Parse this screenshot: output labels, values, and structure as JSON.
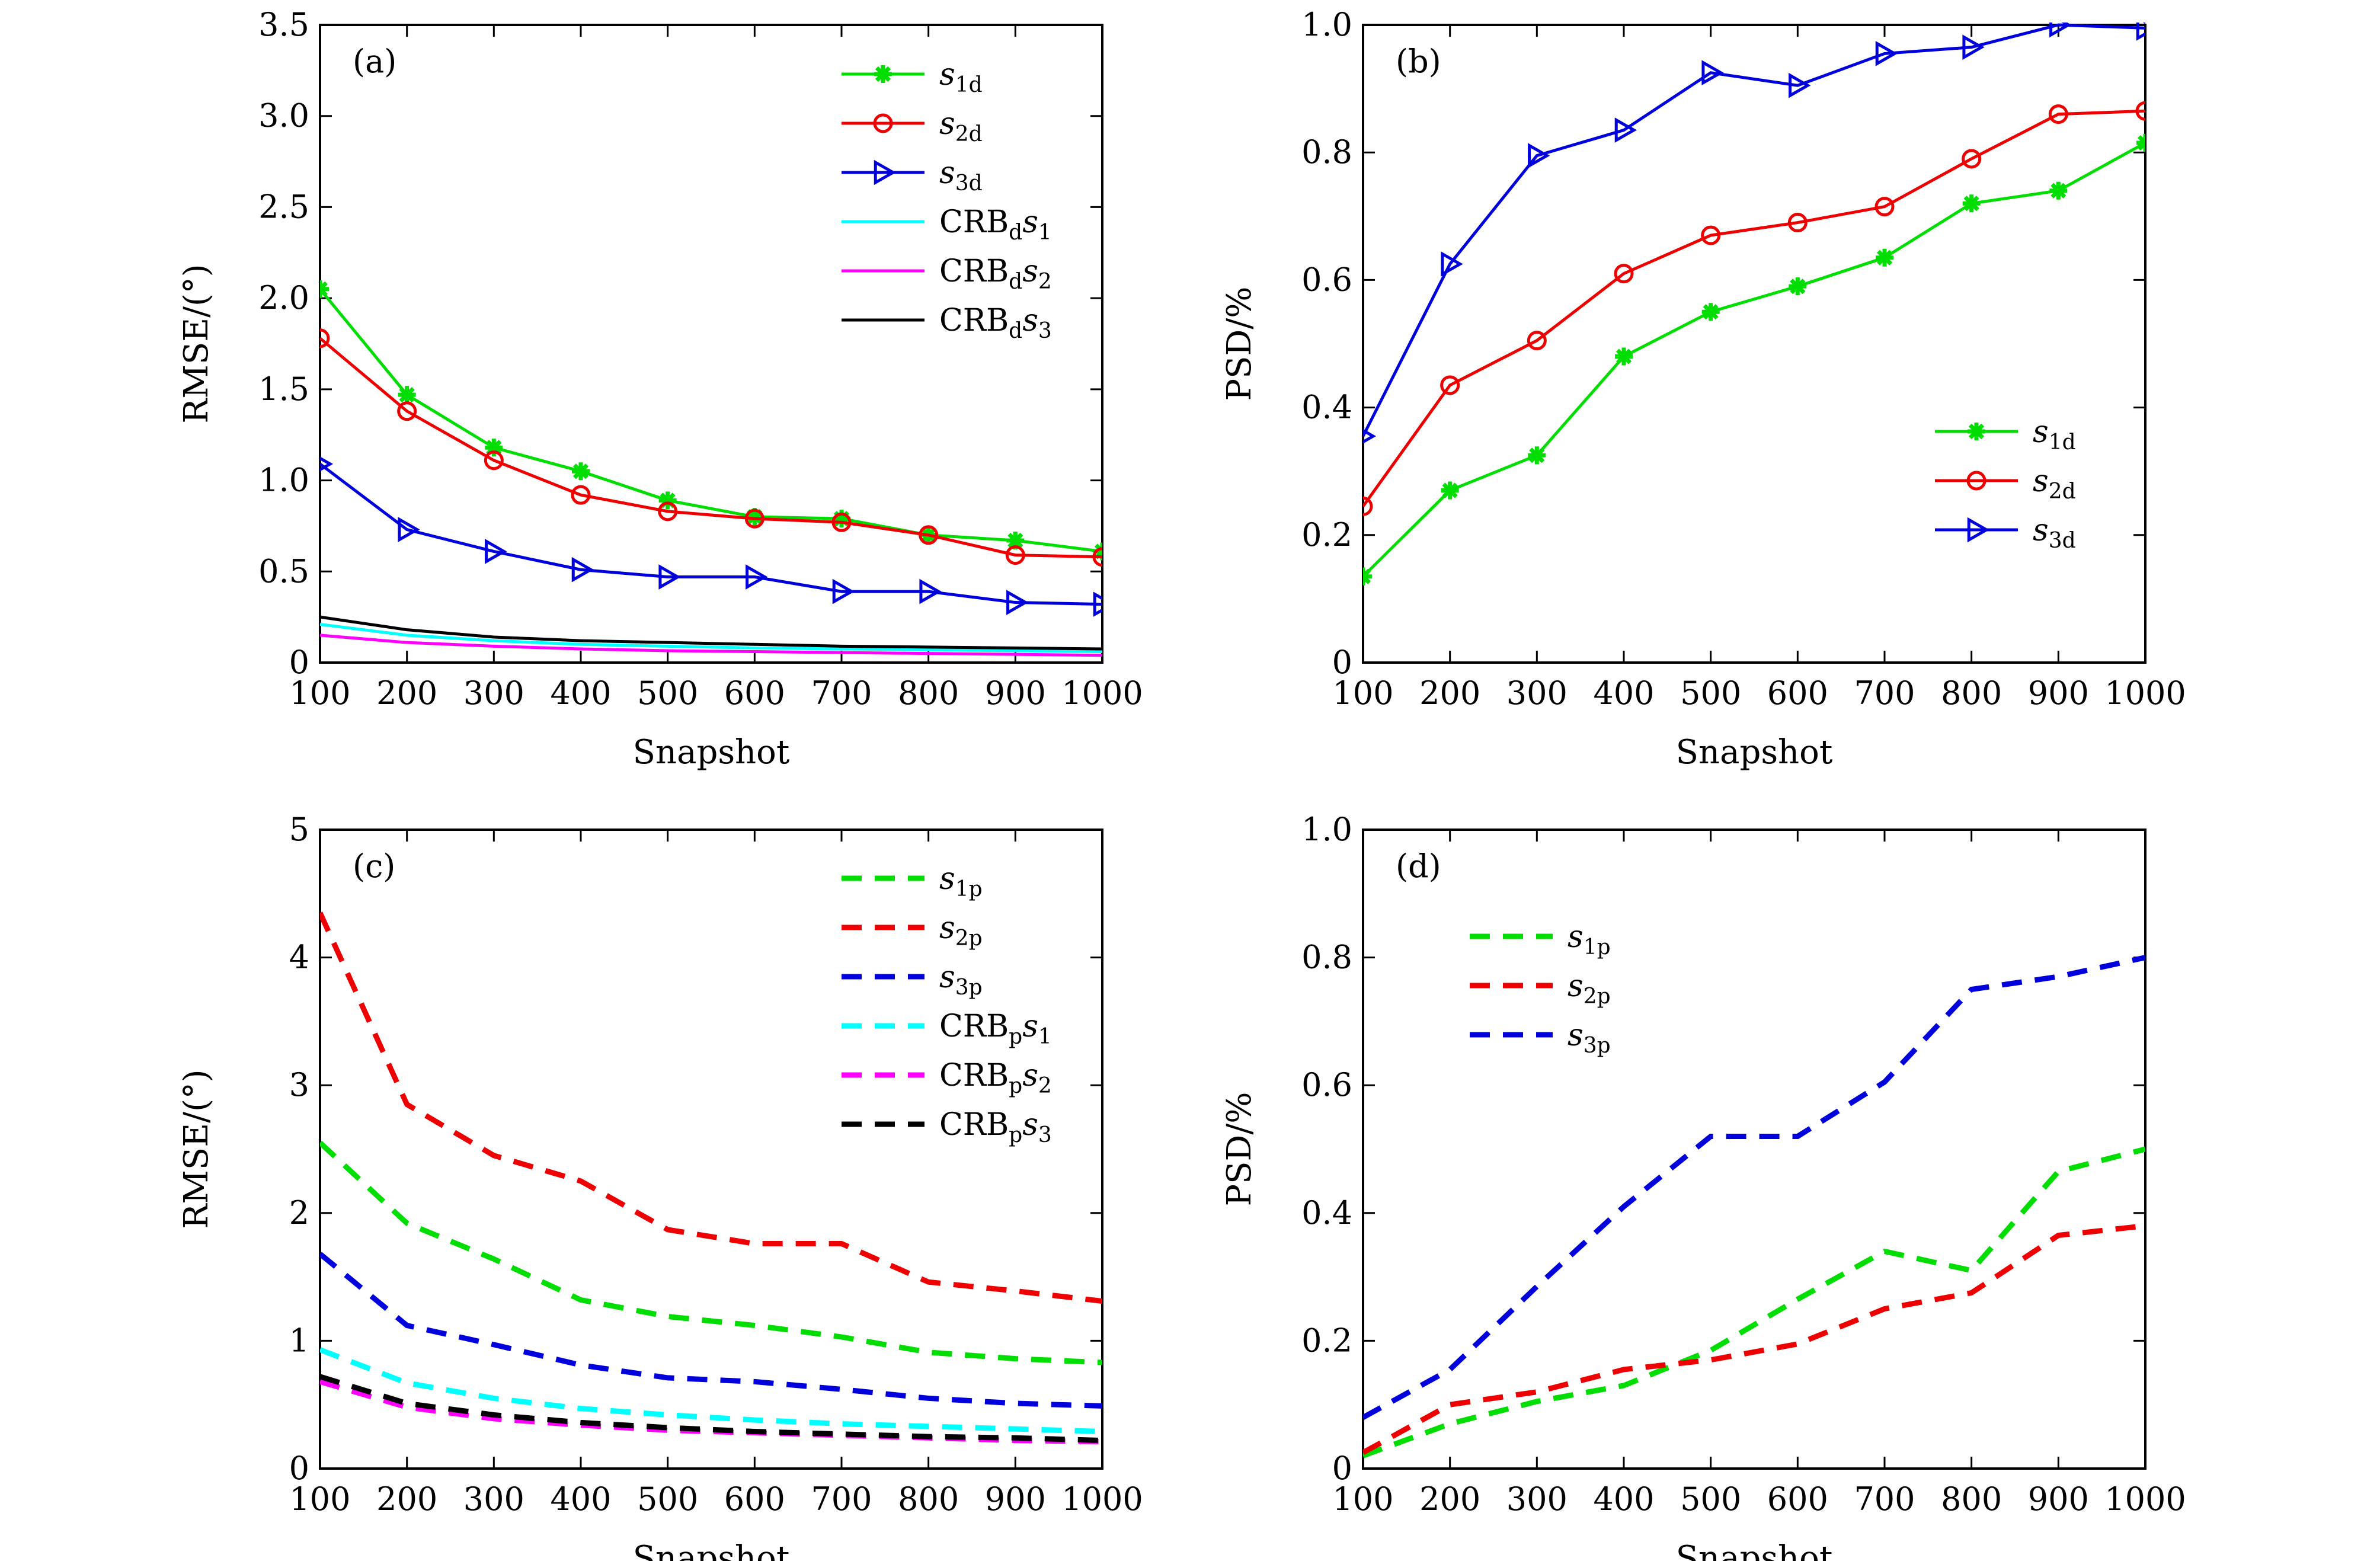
{
  "chart_data": [
    {
      "panel": "(a)",
      "type": "line",
      "xlabel": "Snapshot",
      "ylabel": "RMSE/(°)",
      "xlim": [
        100,
        1000
      ],
      "ylim": [
        0,
        3.5
      ],
      "xticks": [
        "100",
        "200",
        "300",
        "400",
        "500",
        "600",
        "700",
        "800",
        "900",
        "1000"
      ],
      "yticks": [
        "0",
        "0.5",
        "1.0",
        "1.5",
        "2.0",
        "2.5",
        "3.0",
        "3.5"
      ],
      "legend_position": "top-right",
      "x": [
        100,
        200,
        300,
        400,
        500,
        600,
        700,
        800,
        900,
        1000
      ],
      "series": [
        {
          "name": "s1d",
          "name_main": "s",
          "name_sub": "1d",
          "color": "#00dd00",
          "marker": "star",
          "style": "solid",
          "values": [
            2.05,
            1.47,
            1.18,
            1.05,
            0.89,
            0.8,
            0.79,
            0.7,
            0.67,
            0.61
          ]
        },
        {
          "name": "s2d",
          "name_main": "s",
          "name_sub": "2d",
          "color": "#ee0000",
          "marker": "circle",
          "style": "solid",
          "values": [
            1.78,
            1.38,
            1.11,
            0.92,
            0.83,
            0.79,
            0.77,
            0.7,
            0.59,
            0.58
          ]
        },
        {
          "name": "s3d",
          "name_main": "s",
          "name_sub": "3d",
          "color": "#0000dd",
          "marker": "triangle",
          "style": "solid",
          "values": [
            1.09,
            0.73,
            0.61,
            0.51,
            0.47,
            0.47,
            0.39,
            0.39,
            0.33,
            0.32
          ]
        },
        {
          "name": "CRBds1",
          "name_main": "CRB",
          "name_sub": "d",
          "name_suffix": "s",
          "name_suffix_sub": "1",
          "color": "#00ffff",
          "marker": "none",
          "style": "solid",
          "values": [
            0.21,
            0.15,
            0.12,
            0.1,
            0.09,
            0.08,
            0.075,
            0.07,
            0.065,
            0.06
          ]
        },
        {
          "name": "CRBds2",
          "name_main": "CRB",
          "name_sub": "d",
          "name_suffix": "s",
          "name_suffix_sub": "2",
          "color": "#ff00ff",
          "marker": "none",
          "style": "solid",
          "values": [
            0.15,
            0.11,
            0.09,
            0.075,
            0.065,
            0.06,
            0.055,
            0.05,
            0.045,
            0.04
          ]
        },
        {
          "name": "CRBds3",
          "name_main": "CRB",
          "name_sub": "d",
          "name_suffix": "s",
          "name_suffix_sub": "3",
          "color": "#000000",
          "marker": "none",
          "style": "solid",
          "values": [
            0.25,
            0.18,
            0.14,
            0.12,
            0.11,
            0.1,
            0.09,
            0.085,
            0.08,
            0.075
          ]
        }
      ]
    },
    {
      "panel": "(b)",
      "type": "line",
      "xlabel": "Snapshot",
      "ylabel": "PSD/%",
      "xlim": [
        100,
        1000
      ],
      "ylim": [
        0,
        1.0
      ],
      "xticks": [
        "100",
        "200",
        "300",
        "400",
        "500",
        "600",
        "700",
        "800",
        "900",
        "1000"
      ],
      "yticks": [
        "0",
        "0.2",
        "0.4",
        "0.6",
        "0.8",
        "1.0"
      ],
      "legend_position": "bottom-right",
      "x": [
        100,
        200,
        300,
        400,
        500,
        600,
        700,
        800,
        900,
        1000
      ],
      "series": [
        {
          "name": "s1d",
          "name_main": "s",
          "name_sub": "1d",
          "color": "#00dd00",
          "marker": "star",
          "style": "solid",
          "values": [
            0.135,
            0.27,
            0.325,
            0.48,
            0.55,
            0.59,
            0.635,
            0.72,
            0.74,
            0.815
          ]
        },
        {
          "name": "s2d",
          "name_main": "s",
          "name_sub": "2d",
          "color": "#ee0000",
          "marker": "circle",
          "style": "solid",
          "values": [
            0.245,
            0.435,
            0.505,
            0.61,
            0.67,
            0.69,
            0.715,
            0.79,
            0.86,
            0.865
          ]
        },
        {
          "name": "s3d",
          "name_main": "s",
          "name_sub": "3d",
          "color": "#0000dd",
          "marker": "triangle",
          "style": "solid",
          "values": [
            0.355,
            0.625,
            0.795,
            0.835,
            0.925,
            0.905,
            0.955,
            0.965,
            1.0,
            0.995
          ]
        }
      ]
    },
    {
      "panel": "(c)",
      "type": "line",
      "xlabel": "Snapshot",
      "ylabel": "RMSE/(°)",
      "xlim": [
        100,
        1000
      ],
      "ylim": [
        0,
        5
      ],
      "xticks": [
        "100",
        "200",
        "300",
        "400",
        "500",
        "600",
        "700",
        "800",
        "900",
        "1000"
      ],
      "yticks": [
        "0",
        "1",
        "2",
        "3",
        "4",
        "5"
      ],
      "legend_position": "top-right",
      "x": [
        100,
        200,
        300,
        400,
        500,
        600,
        700,
        800,
        900,
        1000
      ],
      "series": [
        {
          "name": "s1p",
          "name_main": "s",
          "name_sub": "1p",
          "color": "#00dd00",
          "marker": "none",
          "style": "dashed",
          "values": [
            2.55,
            1.92,
            1.64,
            1.32,
            1.19,
            1.12,
            1.03,
            0.91,
            0.86,
            0.83
          ]
        },
        {
          "name": "s2p",
          "name_main": "s",
          "name_sub": "2p",
          "color": "#ee0000",
          "marker": "none",
          "style": "dashed",
          "values": [
            4.35,
            2.85,
            2.45,
            2.25,
            1.87,
            1.76,
            1.76,
            1.46,
            1.39,
            1.31
          ]
        },
        {
          "name": "s3p",
          "name_main": "s",
          "name_sub": "3p",
          "color": "#0000dd",
          "marker": "none",
          "style": "dashed",
          "values": [
            1.68,
            1.12,
            0.97,
            0.81,
            0.71,
            0.68,
            0.62,
            0.55,
            0.51,
            0.49
          ]
        },
        {
          "name": "CRBps1",
          "name_main": "CRB",
          "name_sub": "p",
          "name_suffix": "s",
          "name_suffix_sub": "1",
          "color": "#00ffff",
          "marker": "none",
          "style": "dashed",
          "values": [
            0.93,
            0.67,
            0.55,
            0.47,
            0.42,
            0.38,
            0.35,
            0.33,
            0.31,
            0.29
          ]
        },
        {
          "name": "CRBps2",
          "name_main": "CRB",
          "name_sub": "p",
          "name_suffix": "s",
          "name_suffix_sub": "2",
          "color": "#ff00ff",
          "marker": "none",
          "style": "dashed",
          "values": [
            0.68,
            0.48,
            0.39,
            0.34,
            0.3,
            0.28,
            0.26,
            0.24,
            0.22,
            0.21
          ]
        },
        {
          "name": "CRBps3",
          "name_main": "CRB",
          "name_sub": "p",
          "name_suffix": "s",
          "name_suffix_sub": "3",
          "color": "#000000",
          "marker": "none",
          "style": "dashed",
          "values": [
            0.72,
            0.51,
            0.42,
            0.36,
            0.32,
            0.29,
            0.27,
            0.25,
            0.24,
            0.22
          ]
        }
      ]
    },
    {
      "panel": "(d)",
      "type": "line",
      "xlabel": "Snapshot",
      "ylabel": "PSD/%",
      "xlim": [
        100,
        1000
      ],
      "ylim": [
        0,
        1.0
      ],
      "xticks": [
        "100",
        "200",
        "300",
        "400",
        "500",
        "600",
        "700",
        "800",
        "900",
        "1000"
      ],
      "yticks": [
        "0",
        "0.2",
        "0.4",
        "0.6",
        "0.8",
        "1.0"
      ],
      "legend_position": "top-left",
      "x": [
        100,
        200,
        300,
        400,
        500,
        600,
        700,
        800,
        900,
        1000
      ],
      "series": [
        {
          "name": "s1p",
          "name_main": "s",
          "name_sub": "1p",
          "color": "#00dd00",
          "marker": "none",
          "style": "dashed",
          "values": [
            0.02,
            0.07,
            0.105,
            0.13,
            0.185,
            0.265,
            0.34,
            0.31,
            0.465,
            0.5
          ]
        },
        {
          "name": "s2p",
          "name_main": "s",
          "name_sub": "2p",
          "color": "#ee0000",
          "marker": "none",
          "style": "dashed",
          "values": [
            0.025,
            0.1,
            0.12,
            0.155,
            0.17,
            0.195,
            0.25,
            0.275,
            0.365,
            0.38
          ]
        },
        {
          "name": "s3p",
          "name_main": "s",
          "name_sub": "3p",
          "color": "#0000dd",
          "marker": "none",
          "style": "dashed",
          "values": [
            0.08,
            0.155,
            0.285,
            0.41,
            0.52,
            0.52,
            0.605,
            0.75,
            0.77,
            0.8
          ]
        }
      ]
    }
  ]
}
